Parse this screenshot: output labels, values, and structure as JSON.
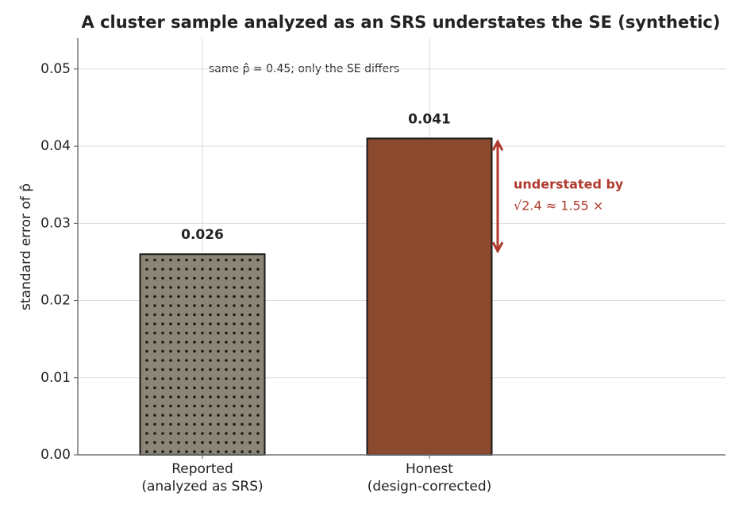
{
  "chart_data": {
    "type": "bar",
    "title": "A cluster sample analyzed as an SRS understates the SE (synthetic)",
    "ylabel": "standard error of p̂",
    "categories": [
      "Reported\n(analyzed as SRS)",
      "Honest\n(design-corrected)"
    ],
    "values": [
      0.026,
      0.041
    ],
    "colors": [
      "#8a8577",
      "#8b4a2d"
    ],
    "hatches": [
      "dots",
      null
    ],
    "ylim": [
      0,
      0.054
    ],
    "yticks": [
      {
        "value": 0,
        "label": "0.00"
      },
      0.01,
      0.02,
      0.03,
      0.04,
      0.05
    ],
    "grid": true,
    "annotations": {
      "note": "same p̂ = 0.45; only the SE differs",
      "arrow_line1": "understated by",
      "arrow_line2": "√2.4 ≈ 1.55 ×",
      "arrow_color": "#b03a2e"
    }
  }
}
